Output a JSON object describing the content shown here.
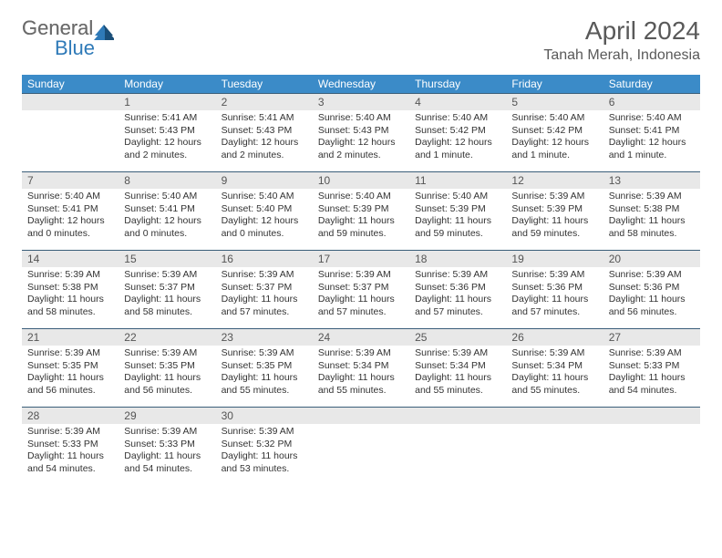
{
  "logo": {
    "general": "General",
    "blue": "Blue"
  },
  "title": "April 2024",
  "location": "Tanah Merah, Indonesia",
  "day_headers": [
    "Sunday",
    "Monday",
    "Tuesday",
    "Wednesday",
    "Thursday",
    "Friday",
    "Saturday"
  ],
  "colors": {
    "header_bg": "#3b8bc8",
    "header_text": "#ffffff",
    "daynum_bg": "#e8e8e8",
    "row_border": "#3b5e7a",
    "title_color": "#595959",
    "logo_gray": "#6b6b6b",
    "logo_blue": "#2f7ab8"
  },
  "weeks": [
    [
      {
        "n": "",
        "sunrise": "",
        "sunset": "",
        "daylight": ""
      },
      {
        "n": "1",
        "sunrise": "5:41 AM",
        "sunset": "5:43 PM",
        "daylight": "12 hours and 2 minutes."
      },
      {
        "n": "2",
        "sunrise": "5:41 AM",
        "sunset": "5:43 PM",
        "daylight": "12 hours and 2 minutes."
      },
      {
        "n": "3",
        "sunrise": "5:40 AM",
        "sunset": "5:43 PM",
        "daylight": "12 hours and 2 minutes."
      },
      {
        "n": "4",
        "sunrise": "5:40 AM",
        "sunset": "5:42 PM",
        "daylight": "12 hours and 1 minute."
      },
      {
        "n": "5",
        "sunrise": "5:40 AM",
        "sunset": "5:42 PM",
        "daylight": "12 hours and 1 minute."
      },
      {
        "n": "6",
        "sunrise": "5:40 AM",
        "sunset": "5:41 PM",
        "daylight": "12 hours and 1 minute."
      }
    ],
    [
      {
        "n": "7",
        "sunrise": "5:40 AM",
        "sunset": "5:41 PM",
        "daylight": "12 hours and 0 minutes."
      },
      {
        "n": "8",
        "sunrise": "5:40 AM",
        "sunset": "5:41 PM",
        "daylight": "12 hours and 0 minutes."
      },
      {
        "n": "9",
        "sunrise": "5:40 AM",
        "sunset": "5:40 PM",
        "daylight": "12 hours and 0 minutes."
      },
      {
        "n": "10",
        "sunrise": "5:40 AM",
        "sunset": "5:39 PM",
        "daylight": "11 hours and 59 minutes."
      },
      {
        "n": "11",
        "sunrise": "5:40 AM",
        "sunset": "5:39 PM",
        "daylight": "11 hours and 59 minutes."
      },
      {
        "n": "12",
        "sunrise": "5:39 AM",
        "sunset": "5:39 PM",
        "daylight": "11 hours and 59 minutes."
      },
      {
        "n": "13",
        "sunrise": "5:39 AM",
        "sunset": "5:38 PM",
        "daylight": "11 hours and 58 minutes."
      }
    ],
    [
      {
        "n": "14",
        "sunrise": "5:39 AM",
        "sunset": "5:38 PM",
        "daylight": "11 hours and 58 minutes."
      },
      {
        "n": "15",
        "sunrise": "5:39 AM",
        "sunset": "5:37 PM",
        "daylight": "11 hours and 58 minutes."
      },
      {
        "n": "16",
        "sunrise": "5:39 AM",
        "sunset": "5:37 PM",
        "daylight": "11 hours and 57 minutes."
      },
      {
        "n": "17",
        "sunrise": "5:39 AM",
        "sunset": "5:37 PM",
        "daylight": "11 hours and 57 minutes."
      },
      {
        "n": "18",
        "sunrise": "5:39 AM",
        "sunset": "5:36 PM",
        "daylight": "11 hours and 57 minutes."
      },
      {
        "n": "19",
        "sunrise": "5:39 AM",
        "sunset": "5:36 PM",
        "daylight": "11 hours and 57 minutes."
      },
      {
        "n": "20",
        "sunrise": "5:39 AM",
        "sunset": "5:36 PM",
        "daylight": "11 hours and 56 minutes."
      }
    ],
    [
      {
        "n": "21",
        "sunrise": "5:39 AM",
        "sunset": "5:35 PM",
        "daylight": "11 hours and 56 minutes."
      },
      {
        "n": "22",
        "sunrise": "5:39 AM",
        "sunset": "5:35 PM",
        "daylight": "11 hours and 56 minutes."
      },
      {
        "n": "23",
        "sunrise": "5:39 AM",
        "sunset": "5:35 PM",
        "daylight": "11 hours and 55 minutes."
      },
      {
        "n": "24",
        "sunrise": "5:39 AM",
        "sunset": "5:34 PM",
        "daylight": "11 hours and 55 minutes."
      },
      {
        "n": "25",
        "sunrise": "5:39 AM",
        "sunset": "5:34 PM",
        "daylight": "11 hours and 55 minutes."
      },
      {
        "n": "26",
        "sunrise": "5:39 AM",
        "sunset": "5:34 PM",
        "daylight": "11 hours and 55 minutes."
      },
      {
        "n": "27",
        "sunrise": "5:39 AM",
        "sunset": "5:33 PM",
        "daylight": "11 hours and 54 minutes."
      }
    ],
    [
      {
        "n": "28",
        "sunrise": "5:39 AM",
        "sunset": "5:33 PM",
        "daylight": "11 hours and 54 minutes."
      },
      {
        "n": "29",
        "sunrise": "5:39 AM",
        "sunset": "5:33 PM",
        "daylight": "11 hours and 54 minutes."
      },
      {
        "n": "30",
        "sunrise": "5:39 AM",
        "sunset": "5:32 PM",
        "daylight": "11 hours and 53 minutes."
      },
      {
        "n": "",
        "sunrise": "",
        "sunset": "",
        "daylight": ""
      },
      {
        "n": "",
        "sunrise": "",
        "sunset": "",
        "daylight": ""
      },
      {
        "n": "",
        "sunrise": "",
        "sunset": "",
        "daylight": ""
      },
      {
        "n": "",
        "sunrise": "",
        "sunset": "",
        "daylight": ""
      }
    ]
  ],
  "labels": {
    "sunrise": "Sunrise: ",
    "sunset": "Sunset: ",
    "daylight": "Daylight: "
  }
}
